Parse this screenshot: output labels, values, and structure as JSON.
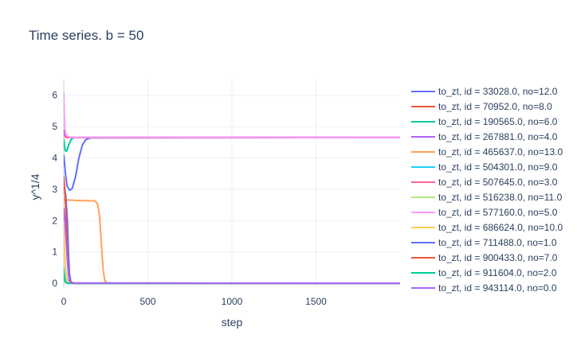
{
  "chart_data": {
    "type": "line",
    "title": "Time series.  b = 50",
    "xlabel": "step",
    "ylabel": "y^1/4",
    "xlim": [
      0,
      2000
    ],
    "ylim": [
      -0.15,
      6.5
    ],
    "xticks": [
      0,
      500,
      1000,
      1500
    ],
    "yticks": [
      0,
      1,
      2,
      3,
      4,
      5,
      6
    ],
    "grid": true,
    "legend_position": "right",
    "series": [
      {
        "name": "to_zt, id = 33028.0, no=12.0",
        "color": "#636efa",
        "points": [
          [
            0,
            4.1
          ],
          [
            10,
            3.5
          ],
          [
            20,
            3.1
          ],
          [
            35,
            2.97
          ],
          [
            50,
            3.02
          ],
          [
            70,
            3.4
          ],
          [
            90,
            4.0
          ],
          [
            110,
            4.4
          ],
          [
            130,
            4.58
          ],
          [
            160,
            4.64
          ],
          [
            2000,
            4.65
          ]
        ]
      },
      {
        "name": "to_zt, id = 70952.0, no=8.0",
        "color": "#ef553b",
        "points": [
          [
            0,
            4.9
          ],
          [
            5,
            4.8
          ],
          [
            10,
            4.72
          ],
          [
            20,
            4.66
          ],
          [
            40,
            4.65
          ],
          [
            2000,
            4.65
          ]
        ]
      },
      {
        "name": "to_zt, id = 190565.0, no=6.0",
        "color": "#00cc96",
        "points": [
          [
            0,
            4.6
          ],
          [
            5,
            4.35
          ],
          [
            10,
            4.22
          ],
          [
            18,
            4.22
          ],
          [
            30,
            4.42
          ],
          [
            45,
            4.6
          ],
          [
            60,
            4.65
          ],
          [
            2000,
            4.65
          ]
        ]
      },
      {
        "name": "to_zt, id = 267881.0, no=4.0",
        "color": "#ab63fa",
        "points": [
          [
            0,
            4.8
          ],
          [
            8,
            4.7
          ],
          [
            20,
            4.66
          ],
          [
            2000,
            4.65
          ]
        ]
      },
      {
        "name": "to_zt, id = 465637.0, no=13.0",
        "color": "#ffa15a",
        "points": [
          [
            0,
            2.66
          ],
          [
            100,
            2.64
          ],
          [
            185,
            2.63
          ],
          [
            200,
            2.55
          ],
          [
            212,
            2.2
          ],
          [
            220,
            1.6
          ],
          [
            228,
            0.9
          ],
          [
            236,
            0.35
          ],
          [
            245,
            0.08
          ],
          [
            260,
            0.01
          ],
          [
            300,
            0.0
          ],
          [
            2000,
            0.0
          ]
        ]
      },
      {
        "name": "to_zt, id = 504301.0, no=9.0",
        "color": "#19d3f3",
        "points": [
          [
            0,
            0.5
          ],
          [
            5,
            0.2
          ],
          [
            12,
            0.05
          ],
          [
            25,
            0.0
          ],
          [
            2000,
            0.0
          ]
        ]
      },
      {
        "name": "to_zt, id = 507645.0, no=3.0",
        "color": "#ff6692",
        "points": [
          [
            0,
            4.7
          ],
          [
            6,
            4.68
          ],
          [
            15,
            4.65
          ],
          [
            2000,
            4.65
          ]
        ]
      },
      {
        "name": "to_zt, id = 516238.0, no=11.0",
        "color": "#b6e880",
        "points": [
          [
            0,
            1.6
          ],
          [
            5,
            0.8
          ],
          [
            12,
            0.3
          ],
          [
            22,
            0.05
          ],
          [
            40,
            0.0
          ],
          [
            2000,
            0.0
          ]
        ]
      },
      {
        "name": "to_zt, id = 577160.0, no=5.0",
        "color": "#ff97ff",
        "points": [
          [
            0,
            6.1
          ],
          [
            3,
            5.4
          ],
          [
            6,
            5.0
          ],
          [
            10,
            4.8
          ],
          [
            18,
            4.7
          ],
          [
            40,
            4.66
          ],
          [
            2000,
            4.65
          ]
        ]
      },
      {
        "name": "to_zt, id = 686624.0, no=10.0",
        "color": "#fecb52",
        "points": [
          [
            0,
            1.9
          ],
          [
            4,
            1.2
          ],
          [
            10,
            0.5
          ],
          [
            20,
            0.1
          ],
          [
            35,
            0.01
          ],
          [
            2000,
            0.0
          ]
        ]
      },
      {
        "name": "to_zt, id = 711488.0, no=1.0",
        "color": "#636efa",
        "points": [
          [
            0,
            3.2
          ],
          [
            12,
            2.8
          ],
          [
            22,
            2.0
          ],
          [
            28,
            1.0
          ],
          [
            34,
            0.3
          ],
          [
            42,
            0.05
          ],
          [
            60,
            0.0
          ],
          [
            2000,
            0.0
          ]
        ]
      },
      {
        "name": "to_zt, id = 900433.0, no=7.0",
        "color": "#ef553b",
        "points": [
          [
            0,
            3.4
          ],
          [
            8,
            2.8
          ],
          [
            15,
            2.0
          ],
          [
            22,
            1.0
          ],
          [
            28,
            0.3
          ],
          [
            36,
            0.05
          ],
          [
            55,
            0.0
          ],
          [
            2000,
            0.0
          ]
        ]
      },
      {
        "name": "to_zt, id = 911604.0, no=2.0",
        "color": "#00cc96",
        "points": [
          [
            0,
            0.3
          ],
          [
            5,
            0.1
          ],
          [
            12,
            0.02
          ],
          [
            25,
            0.0
          ],
          [
            2000,
            0.0
          ]
        ]
      },
      {
        "name": "to_zt, id = 943114.0, no=0.0",
        "color": "#ab63fa",
        "points": [
          [
            0,
            2.4
          ],
          [
            8,
            1.9
          ],
          [
            16,
            1.2
          ],
          [
            24,
            0.5
          ],
          [
            32,
            0.1
          ],
          [
            45,
            0.01
          ],
          [
            2000,
            0.0
          ]
        ]
      }
    ]
  }
}
